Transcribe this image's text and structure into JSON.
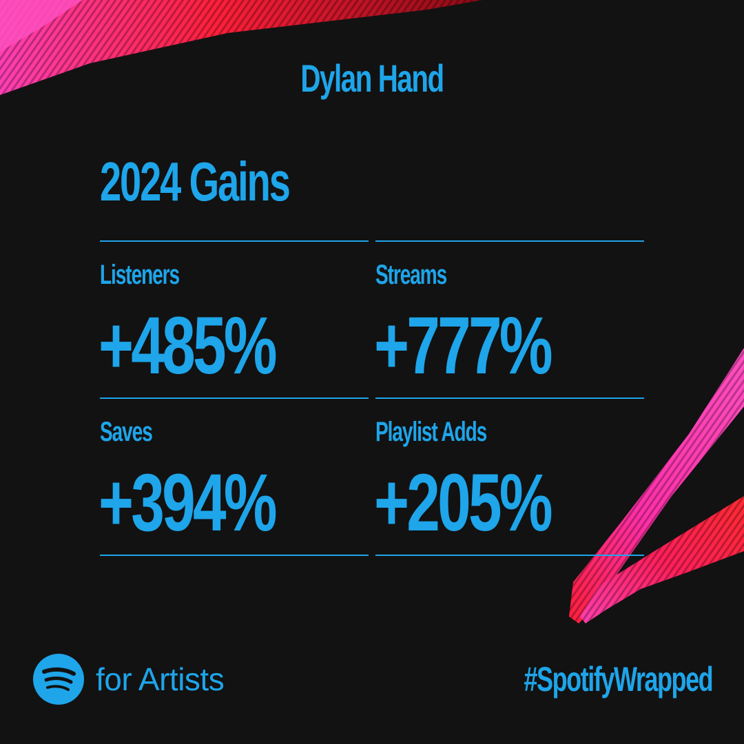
{
  "artist": {
    "name": "Dylan Hand"
  },
  "section": {
    "title": "2024 Gains"
  },
  "stats": [
    {
      "label": "Listeners",
      "value": "+485%"
    },
    {
      "label": "Streams",
      "value": "+777%"
    },
    {
      "label": "Saves",
      "value": "+394%"
    },
    {
      "label": "Playlist Adds",
      "value": "+205%"
    }
  ],
  "footer": {
    "brand_text": "for Artists",
    "logo_icon": "spotify-logo-icon",
    "hashtag": "#SpotifyWrapped"
  },
  "colors": {
    "background": "#121212",
    "accent_blue": "#1ea5ea",
    "decor_pink": "#ff2fa8",
    "decor_red": "#ff1a2e"
  }
}
